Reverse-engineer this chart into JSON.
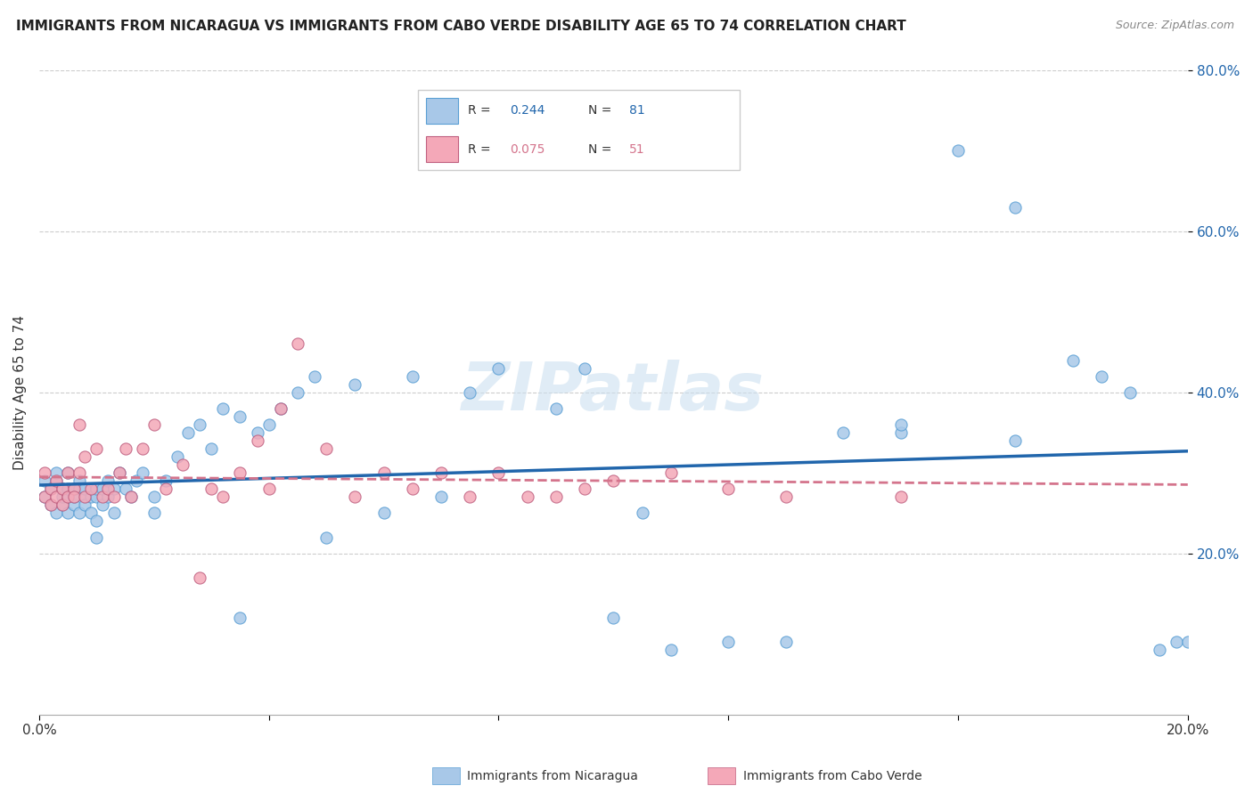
{
  "title": "IMMIGRANTS FROM NICARAGUA VS IMMIGRANTS FROM CABO VERDE DISABILITY AGE 65 TO 74 CORRELATION CHART",
  "source": "Source: ZipAtlas.com",
  "ylabel": "Disability Age 65 to 74",
  "legend_label1": "Immigrants from Nicaragua",
  "legend_label2": "Immigrants from Cabo Verde",
  "R1": 0.244,
  "N1": 81,
  "R2": 0.075,
  "N2": 51,
  "color1": "#a8c8e8",
  "color2": "#f4a8b8",
  "trendline1_color": "#2166ac",
  "trendline2_color": "#d4748c",
  "edge1": "#5a9fd4",
  "edge2": "#c06080",
  "xlim": [
    0.0,
    0.2
  ],
  "ylim": [
    0.0,
    0.8
  ],
  "yticks": [
    0.2,
    0.4,
    0.6,
    0.8
  ],
  "ytick_labels": [
    "20.0%",
    "40.0%",
    "60.0%",
    "80.0%"
  ],
  "xticks": [
    0.0,
    0.04,
    0.08,
    0.12,
    0.16,
    0.2
  ],
  "watermark": "ZIPatlas",
  "nicaragua_x": [
    0.001,
    0.001,
    0.002,
    0.002,
    0.003,
    0.003,
    0.003,
    0.004,
    0.004,
    0.004,
    0.005,
    0.005,
    0.005,
    0.005,
    0.006,
    0.006,
    0.006,
    0.007,
    0.007,
    0.007,
    0.008,
    0.008,
    0.008,
    0.009,
    0.009,
    0.01,
    0.01,
    0.01,
    0.011,
    0.011,
    0.012,
    0.012,
    0.013,
    0.013,
    0.014,
    0.015,
    0.016,
    0.017,
    0.018,
    0.02,
    0.022,
    0.024,
    0.026,
    0.028,
    0.03,
    0.032,
    0.035,
    0.038,
    0.04,
    0.042,
    0.045,
    0.048,
    0.05,
    0.055,
    0.06,
    0.065,
    0.07,
    0.075,
    0.08,
    0.09,
    0.095,
    0.1,
    0.105,
    0.11,
    0.12,
    0.13,
    0.14,
    0.15,
    0.16,
    0.17,
    0.18,
    0.185,
    0.19,
    0.195,
    0.198,
    0.2,
    0.15,
    0.17,
    0.01,
    0.02,
    0.035
  ],
  "nicaragua_y": [
    0.27,
    0.29,
    0.28,
    0.26,
    0.29,
    0.25,
    0.3,
    0.26,
    0.27,
    0.28,
    0.27,
    0.28,
    0.25,
    0.3,
    0.26,
    0.27,
    0.28,
    0.25,
    0.29,
    0.28,
    0.27,
    0.26,
    0.28,
    0.25,
    0.27,
    0.27,
    0.24,
    0.28,
    0.28,
    0.26,
    0.29,
    0.27,
    0.28,
    0.25,
    0.3,
    0.28,
    0.27,
    0.29,
    0.3,
    0.27,
    0.29,
    0.32,
    0.35,
    0.36,
    0.33,
    0.38,
    0.37,
    0.35,
    0.36,
    0.38,
    0.4,
    0.42,
    0.22,
    0.41,
    0.25,
    0.42,
    0.27,
    0.4,
    0.43,
    0.38,
    0.43,
    0.12,
    0.25,
    0.08,
    0.09,
    0.09,
    0.35,
    0.35,
    0.7,
    0.63,
    0.44,
    0.42,
    0.4,
    0.08,
    0.09,
    0.09,
    0.36,
    0.34,
    0.22,
    0.25,
    0.12
  ],
  "caboverde_x": [
    0.001,
    0.001,
    0.002,
    0.002,
    0.003,
    0.003,
    0.004,
    0.004,
    0.005,
    0.005,
    0.006,
    0.006,
    0.007,
    0.007,
    0.008,
    0.008,
    0.009,
    0.01,
    0.011,
    0.012,
    0.013,
    0.014,
    0.015,
    0.016,
    0.018,
    0.02,
    0.022,
    0.025,
    0.028,
    0.03,
    0.032,
    0.035,
    0.038,
    0.04,
    0.042,
    0.045,
    0.05,
    0.055,
    0.06,
    0.065,
    0.07,
    0.075,
    0.08,
    0.085,
    0.09,
    0.095,
    0.1,
    0.11,
    0.12,
    0.13,
    0.15
  ],
  "caboverde_y": [
    0.27,
    0.3,
    0.28,
    0.26,
    0.27,
    0.29,
    0.28,
    0.26,
    0.27,
    0.3,
    0.28,
    0.27,
    0.36,
    0.3,
    0.27,
    0.32,
    0.28,
    0.33,
    0.27,
    0.28,
    0.27,
    0.3,
    0.33,
    0.27,
    0.33,
    0.36,
    0.28,
    0.31,
    0.17,
    0.28,
    0.27,
    0.3,
    0.34,
    0.28,
    0.38,
    0.46,
    0.33,
    0.27,
    0.3,
    0.28,
    0.3,
    0.27,
    0.3,
    0.27,
    0.27,
    0.28,
    0.29,
    0.3,
    0.28,
    0.27,
    0.27
  ]
}
